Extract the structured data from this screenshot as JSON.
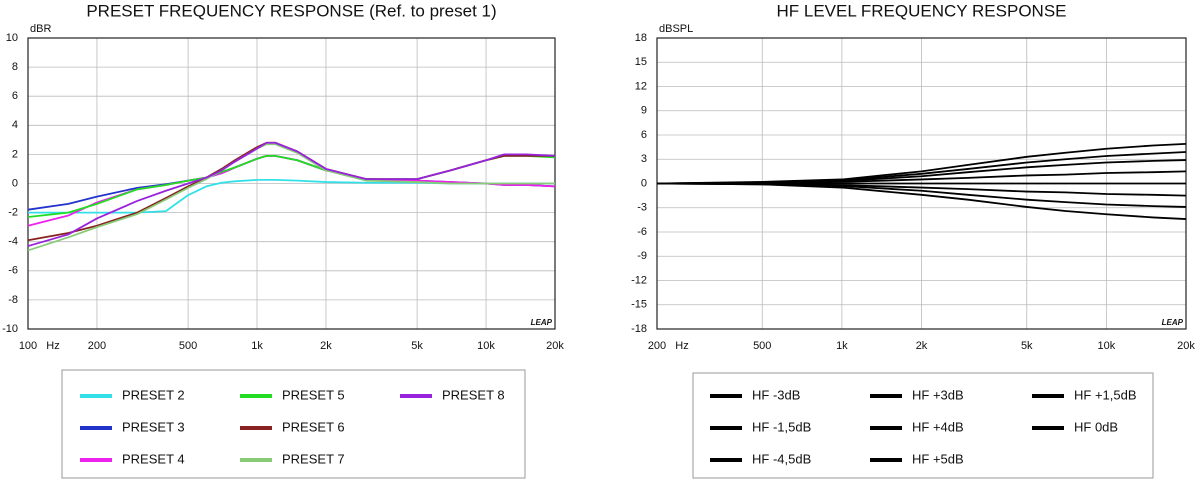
{
  "chart_data": [
    {
      "type": "line",
      "title": "PRESET FREQUENCY RESPONSE (Ref. to preset 1)",
      "y_label": "dBR",
      "x_label": "Hz",
      "watermark": "LEAP",
      "log_x": true,
      "grid": true,
      "xlim": [
        100,
        20000
      ],
      "ylim": [
        -10,
        10
      ],
      "xticks": [
        100,
        200,
        500,
        {
          "value": 1000,
          "label": "1k"
        },
        {
          "value": 2000,
          "label": "2k"
        },
        {
          "value": 5000,
          "label": "5k"
        },
        {
          "value": 10000,
          "label": "10k"
        },
        {
          "value": 20000,
          "label": "20k"
        }
      ],
      "yticks": [
        10,
        8,
        6,
        4,
        2,
        0,
        -2,
        -4,
        -6,
        -8,
        -10
      ],
      "x": [
        100,
        150,
        200,
        300,
        400,
        500,
        600,
        700,
        800,
        1000,
        1100,
        1200,
        1500,
        2000,
        3000,
        5000,
        7000,
        10000,
        12000,
        15000,
        20000
      ],
      "series": [
        {
          "name": "PRESET 2",
          "color": "#33e0e8",
          "values": [
            -2.0,
            -2.0,
            -2.0,
            -2.0,
            -1.9,
            -0.8,
            -0.2,
            0.05,
            0.15,
            0.25,
            0.25,
            0.25,
            0.2,
            0.1,
            0.05,
            0.05,
            0,
            0,
            0,
            0,
            0
          ]
        },
        {
          "name": "PRESET 3",
          "color": "#2233cc",
          "values": [
            -1.8,
            -1.4,
            -0.9,
            -0.3,
            -0.05,
            0.2,
            0.4,
            0.7,
            1.1,
            1.7,
            1.9,
            1.9,
            1.6,
            0.9,
            0.3,
            0.2,
            0.1,
            0,
            -0.1,
            -0.1,
            -0.2
          ]
        },
        {
          "name": "PRESET 4",
          "color": "#ee22ee",
          "values": [
            -2.9,
            -2.2,
            -1.3,
            -0.4,
            -0.1,
            0.2,
            0.4,
            0.7,
            1.1,
            1.7,
            1.9,
            1.9,
            1.6,
            0.9,
            0.3,
            0.2,
            0.1,
            0,
            -0.1,
            -0.1,
            -0.2
          ]
        },
        {
          "name": "PRESET 5",
          "color": "#22dd22",
          "values": [
            -2.3,
            -2.0,
            -1.4,
            -0.4,
            -0.1,
            0.2,
            0.4,
            0.8,
            1.1,
            1.7,
            1.9,
            1.9,
            1.6,
            0.9,
            0.3,
            0.3,
            0.9,
            1.6,
            1.9,
            1.9,
            1.8
          ]
        },
        {
          "name": "PRESET 6",
          "color": "#882222",
          "values": [
            -3.9,
            -3.4,
            -2.9,
            -2.0,
            -1.0,
            -0.2,
            0.4,
            1.0,
            1.6,
            2.5,
            2.8,
            2.8,
            2.2,
            1.0,
            0.3,
            0.3,
            0.9,
            1.6,
            1.9,
            1.9,
            1.9
          ]
        },
        {
          "name": "PRESET 7",
          "color": "#88cc77",
          "values": [
            -4.6,
            -3.7,
            -3.0,
            -2.1,
            -1.1,
            -0.3,
            0.3,
            0.9,
            1.5,
            2.4,
            2.7,
            2.7,
            2.1,
            0.9,
            0.2,
            0.1,
            0,
            0,
            0,
            0,
            0
          ]
        },
        {
          "name": "PRESET 8",
          "color": "#9922dd",
          "values": [
            -4.3,
            -3.5,
            -2.4,
            -1.2,
            -0.5,
            0,
            0.4,
            0.9,
            1.5,
            2.4,
            2.8,
            2.8,
            2.2,
            1.0,
            0.3,
            0.3,
            0.9,
            1.6,
            2.0,
            2.0,
            1.9
          ]
        }
      ]
    },
    {
      "type": "line",
      "title": "HF LEVEL FREQUENCY RESPONSE",
      "y_label": "dBSPL",
      "x_label": "Hz",
      "watermark": "LEAP",
      "log_x": true,
      "grid": true,
      "xlim": [
        200,
        20000
      ],
      "ylim": [
        -18,
        18
      ],
      "xticks": [
        200,
        500,
        {
          "value": 1000,
          "label": "1k"
        },
        {
          "value": 2000,
          "label": "2k"
        },
        {
          "value": 5000,
          "label": "5k"
        },
        {
          "value": 10000,
          "label": "10k"
        },
        {
          "value": 20000,
          "label": "20k"
        }
      ],
      "yticks": [
        18,
        15,
        12,
        9,
        6,
        3,
        0,
        -3,
        -6,
        -9,
        -12,
        -15,
        -18
      ],
      "x": [
        200,
        500,
        1000,
        2000,
        3000,
        5000,
        7000,
        10000,
        15000,
        20000
      ],
      "series": [
        {
          "name": "HF -3dB",
          "color": "#000000",
          "values": [
            0,
            -0.1,
            -0.3,
            -0.9,
            -1.4,
            -2.0,
            -2.3,
            -2.6,
            -2.8,
            -2.9
          ]
        },
        {
          "name": "HF -1,5dB",
          "color": "#000000",
          "values": [
            0,
            0,
            -0.2,
            -0.5,
            -0.7,
            -1.0,
            -1.1,
            -1.3,
            -1.4,
            -1.5
          ]
        },
        {
          "name": "HF -4,5dB",
          "color": "#000000",
          "values": [
            0,
            -0.1,
            -0.5,
            -1.4,
            -2.0,
            -2.9,
            -3.4,
            -3.8,
            -4.2,
            -4.4
          ]
        },
        {
          "name": "HF +3dB",
          "color": "#000000",
          "values": [
            0,
            0.1,
            0.3,
            0.9,
            1.4,
            2.0,
            2.3,
            2.6,
            2.8,
            2.9
          ]
        },
        {
          "name": "HF +4dB",
          "color": "#000000",
          "values": [
            0,
            0.1,
            0.4,
            1.2,
            1.8,
            2.6,
            3.0,
            3.4,
            3.7,
            3.9
          ]
        },
        {
          "name": "HF +5dB",
          "color": "#000000",
          "values": [
            0,
            0.2,
            0.5,
            1.5,
            2.3,
            3.3,
            3.8,
            4.3,
            4.7,
            4.9
          ]
        },
        {
          "name": "HF +1,5dB",
          "color": "#000000",
          "values": [
            0,
            0,
            0.2,
            0.5,
            0.7,
            1.0,
            1.1,
            1.3,
            1.4,
            1.5
          ]
        },
        {
          "name": "HF 0dB",
          "color": "#000000",
          "values": [
            0,
            0,
            0,
            0,
            0,
            0,
            0,
            0,
            0,
            0
          ]
        }
      ]
    }
  ]
}
